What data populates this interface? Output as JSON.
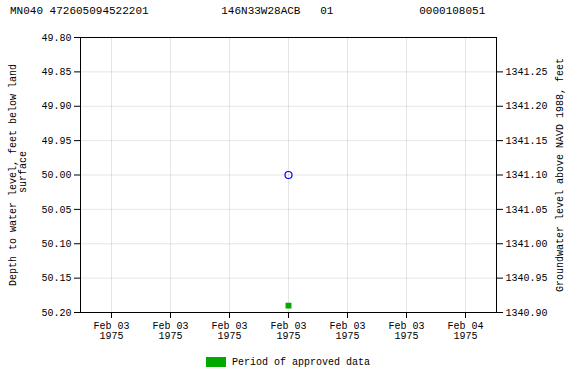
{
  "chart_data": {
    "type": "scatter",
    "title": "MN040 472605094522201           146N33W28ACB   01             0000108051",
    "ylabel": "Depth to water level, feet below land\n surface",
    "y2label": "Groundwater level above NAVD 1988, feet",
    "categories": [
      "Feb 03\n1975",
      "Feb 03\n1975",
      "Feb 03\n1975",
      "Feb 03\n1975",
      "Feb 03\n1975",
      "Feb 03\n1975",
      "Feb 04\n1975"
    ],
    "series": [
      {
        "color": "blue",
        "marker": "open circle",
        "values": [
          null,
          null,
          null,
          50.0,
          null,
          null,
          null
        ]
      },
      {
        "name": "Period of approved data",
        "color": "#00aa00",
        "marker": "square",
        "values": [
          null,
          null,
          null,
          50.19,
          null,
          null,
          null
        ]
      }
    ],
    "ylim": [
      50.2,
      49.8
    ],
    "yticks": [
      {
        "value": 49.8,
        "label": "49.80"
      },
      {
        "value": 49.85,
        "label": "49.85"
      },
      {
        "value": 49.9,
        "label": "49.90"
      },
      {
        "value": 49.95,
        "label": "49.95"
      },
      {
        "value": 50.0,
        "label": "50.00"
      },
      {
        "value": 50.05,
        "label": "50.05"
      },
      {
        "value": 50.1,
        "label": "50.10"
      },
      {
        "value": 50.15,
        "label": "50.15"
      },
      {
        "value": 50.2,
        "label": "50.20"
      }
    ],
    "y2lim": [
      1340.9,
      1341.3
    ],
    "y2ticks": [
      {
        "value": 1340.9,
        "label": "1340.90"
      },
      {
        "value": 1340.95,
        "label": "1340.95"
      },
      {
        "value": 1341.0,
        "label": "1341.00"
      },
      {
        "value": 1341.05,
        "label": "1341.05"
      },
      {
        "value": 1341.1,
        "label": "1341.10"
      },
      {
        "value": 1341.15,
        "label": "1341.15"
      },
      {
        "value": 1341.2,
        "label": "1341.20"
      },
      {
        "value": 1341.25,
        "label": "1341.25"
      }
    ],
    "grid": true,
    "legend": "bottom"
  }
}
